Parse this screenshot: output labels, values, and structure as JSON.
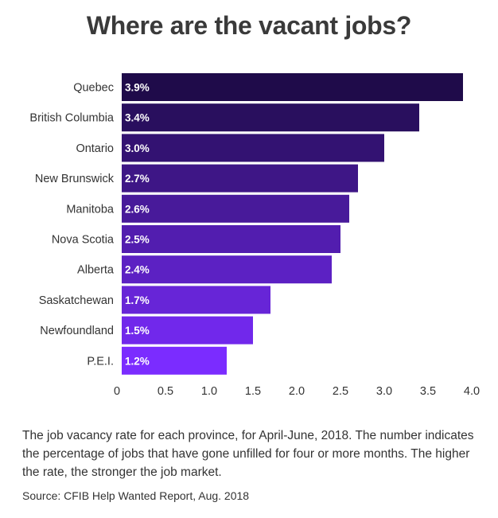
{
  "title": "Where are the vacant jobs?",
  "caption": "The job vacancy rate for each province, for April-June, 2018. The number indicates the percentage of jobs that have gone unfilled for four or more months. The higher the rate, the stronger the job market.",
  "source": "Source: CFIB Help Wanted Report, Aug. 2018",
  "colors": {
    "bar_start": "#1f0b4a",
    "bar_end": "#7b2cff"
  },
  "chart_data": {
    "type": "bar",
    "orientation": "horizontal",
    "categories": [
      "Quebec",
      "British Columbia",
      "Ontario",
      "New Brunswick",
      "Manitoba",
      "Nova Scotia",
      "Alberta",
      "Saskatchewan",
      "Newfoundland",
      "P.E.I."
    ],
    "values": [
      3.9,
      3.4,
      3.0,
      2.7,
      2.6,
      2.5,
      2.4,
      1.7,
      1.5,
      1.2
    ],
    "data_labels": [
      "3.9%",
      "3.4%",
      "3.0%",
      "2.7%",
      "2.6%",
      "2.5%",
      "2.4%",
      "1.7%",
      "1.5%",
      "1.2%"
    ],
    "x_ticks": [
      "0",
      "0.5",
      "1.0",
      "1.5",
      "2.0",
      "2.5",
      "3.0",
      "3.5",
      "4.0"
    ],
    "xlim": [
      0,
      4.0
    ],
    "grid": false
  }
}
